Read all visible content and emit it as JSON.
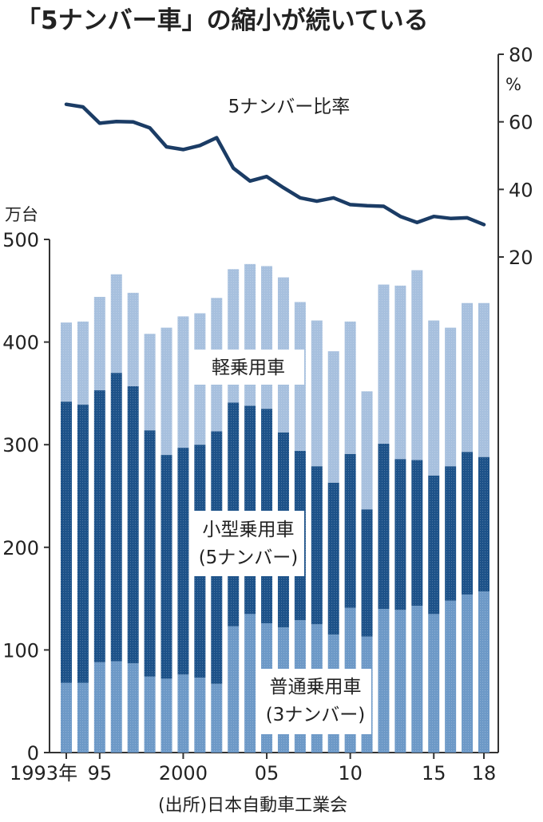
{
  "title": "「5ナンバー車」の縮小が続いている",
  "source": "(出所)日本自動車工業会",
  "colors": {
    "light": "#a7c0de",
    "medium": "#1d5289",
    "dark_line": "#1b3c65",
    "base": "#6d99c7",
    "axis": "#333333"
  },
  "chart_data": [
    {
      "type": "bar",
      "stacked": true,
      "y_unit_label": "万台",
      "ylim": [
        0,
        500
      ],
      "y_ticks": [
        "0",
        "100",
        "200",
        "300",
        "400",
        "500"
      ],
      "x_tick_labels": [
        {
          "label": "1993年",
          "year": 1993
        },
        {
          "label": "95",
          "year": 1995
        },
        {
          "label": "2000",
          "year": 2000
        },
        {
          "label": "05",
          "year": 2005
        },
        {
          "label": "10",
          "year": 2010
        },
        {
          "label": "15",
          "year": 2015
        },
        {
          "label": "18",
          "year": 2018
        }
      ],
      "categories": [
        1993,
        1994,
        1995,
        1996,
        1997,
        1998,
        1999,
        2000,
        2001,
        2002,
        2003,
        2004,
        2005,
        2006,
        2007,
        2008,
        2009,
        2010,
        2011,
        2012,
        2013,
        2014,
        2015,
        2016,
        2017,
        2018
      ],
      "series": [
        {
          "name": "普通乗用車\n(3ナンバー)",
          "values": [
            68,
            68,
            88,
            89,
            87,
            74,
            72,
            76,
            73,
            67,
            123,
            135,
            126,
            122,
            129,
            125,
            115,
            141,
            113,
            140,
            139,
            143,
            135,
            148,
            154,
            157
          ]
        },
        {
          "name": "小型乗用車\n(5ナンバー)",
          "values": [
            274,
            271,
            265,
            281,
            270,
            240,
            218,
            221,
            227,
            246,
            218,
            203,
            209,
            190,
            165,
            154,
            148,
            150,
            124,
            161,
            147,
            142,
            135,
            131,
            139,
            131
          ]
        },
        {
          "name": "軽乗用車",
          "values": [
            77,
            81,
            91,
            96,
            91,
            94,
            124,
            128,
            128,
            130,
            130,
            138,
            139,
            151,
            145,
            142,
            128,
            129,
            115,
            155,
            169,
            185,
            151,
            135,
            145,
            150
          ]
        }
      ],
      "series_labels": [
        {
          "lines": [
            "普通乗用車",
            "(3ナンバー)"
          ]
        },
        {
          "lines": [
            "小型乗用車",
            "(5ナンバー)"
          ]
        },
        {
          "lines": [
            "軽乗用車"
          ]
        }
      ]
    },
    {
      "type": "line",
      "name": "5ナンバー比率",
      "y_unit_label": "%",
      "ylim": [
        20,
        80
      ],
      "y_ticks": [
        "20",
        "40",
        "60",
        "80"
      ],
      "x": [
        1993,
        1994,
        1995,
        1996,
        1997,
        1998,
        1999,
        2000,
        2001,
        2002,
        2003,
        2004,
        2005,
        2006,
        2007,
        2008,
        2009,
        2010,
        2011,
        2012,
        2013,
        2014,
        2015,
        2016,
        2017,
        2018
      ],
      "y": [
        65.2,
        64.4,
        59.6,
        60.1,
        60.0,
        58.2,
        52.6,
        51.8,
        53.0,
        55.3,
        46.3,
        42.5,
        43.8,
        40.5,
        37.5,
        36.5,
        37.5,
        35.5,
        35.2,
        35.0,
        32.0,
        30.2,
        32.0,
        31.4,
        31.6,
        29.6
      ]
    }
  ]
}
